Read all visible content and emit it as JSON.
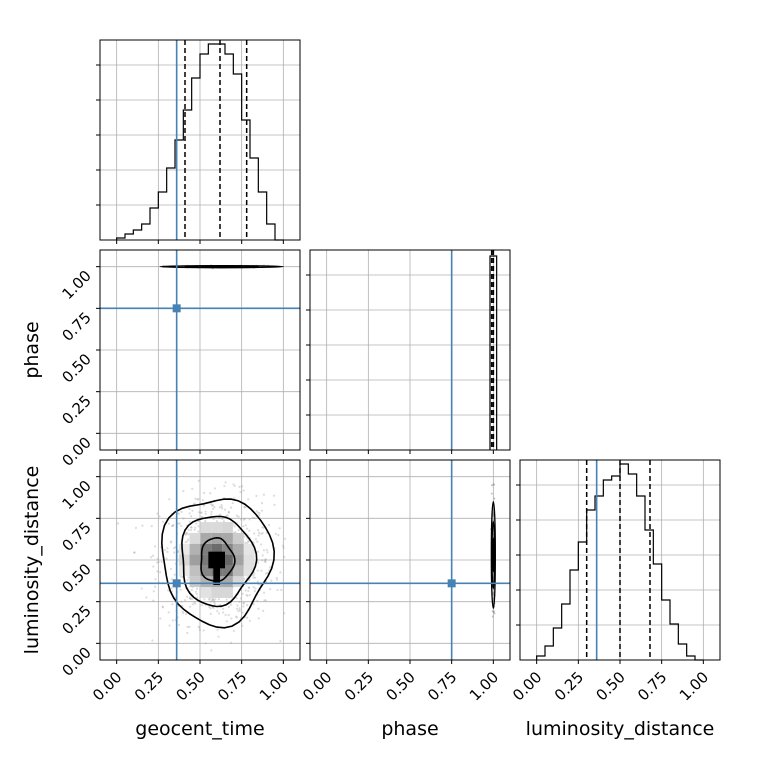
{
  "chart_data": {
    "type": "corner",
    "parameters": [
      "geocent_time",
      "phase",
      "luminosity_distance"
    ],
    "axis_labels": {
      "geocent_time": "geocent_time",
      "phase": "phase",
      "luminosity_distance": "luminosity_distance"
    },
    "axis_range": [
      -0.1,
      1.1
    ],
    "ticks": [
      0.0,
      0.25,
      0.5,
      0.75,
      1.0
    ],
    "tick_labels": [
      "0.00",
      "0.25",
      "0.50",
      "0.75",
      "1.00"
    ],
    "grid": true,
    "truth_color": "#4682b4",
    "line_color": "#000000",
    "truths": {
      "geocent_time": 0.36,
      "phase": 0.75,
      "luminosity_distance": 0.36
    },
    "quantiles": {
      "geocent_time": [
        0.41,
        0.62,
        0.78
      ],
      "phase": [
        0.99,
        1.0,
        1.0
      ],
      "luminosity_distance": [
        0.3,
        0.5,
        0.68
      ]
    },
    "marginal_histograms": {
      "geocent_time": {
        "bin_edges": [
          0.0,
          0.05,
          0.1,
          0.15,
          0.2,
          0.25,
          0.3,
          0.35,
          0.4,
          0.45,
          0.5,
          0.55,
          0.6,
          0.65,
          0.7,
          0.75,
          0.8,
          0.85,
          0.9,
          0.95,
          1.0
        ],
        "heights": [
          0.01,
          0.03,
          0.05,
          0.08,
          0.16,
          0.24,
          0.36,
          0.5,
          0.65,
          0.81,
          0.93,
          0.98,
          0.98,
          0.93,
          0.83,
          0.6,
          0.41,
          0.24,
          0.08,
          0.0
        ]
      },
      "phase": {
        "bin_edges": [
          0.98,
          1.0,
          1.02
        ],
        "heights": [
          0.97,
          0.97
        ]
      },
      "luminosity_distance": {
        "bin_edges": [
          0.0,
          0.05,
          0.1,
          0.15,
          0.2,
          0.25,
          0.3,
          0.35,
          0.4,
          0.45,
          0.5,
          0.55,
          0.6,
          0.65,
          0.7,
          0.75,
          0.8,
          0.85,
          0.9,
          0.95,
          1.0
        ],
        "heights": [
          0.02,
          0.07,
          0.16,
          0.28,
          0.45,
          0.59,
          0.75,
          0.82,
          0.9,
          0.92,
          0.98,
          0.93,
          0.82,
          0.65,
          0.48,
          0.3,
          0.18,
          0.08,
          0.02,
          0.0
        ]
      }
    },
    "joint_2d": {
      "phase_vs_geocent_time": {
        "center": [
          0.63,
          1.0
        ],
        "contour_half_widths": [
          [
            0.37,
            0.006
          ],
          [
            0.22,
            0.005
          ],
          [
            0.12,
            0.003
          ]
        ]
      },
      "luminosity_distance_vs_geocent_time": {
        "center": [
          0.6,
          0.5
        ],
        "x_range": [
          0.25,
          0.93
        ],
        "y_range": [
          0.12,
          0.88
        ]
      },
      "luminosity_distance_vs_phase": {
        "center": [
          1.0,
          0.53
        ],
        "contour_half_widths": [
          [
            0.012,
            0.32
          ],
          [
            0.008,
            0.2
          ],
          [
            0.005,
            0.1
          ]
        ]
      }
    }
  }
}
